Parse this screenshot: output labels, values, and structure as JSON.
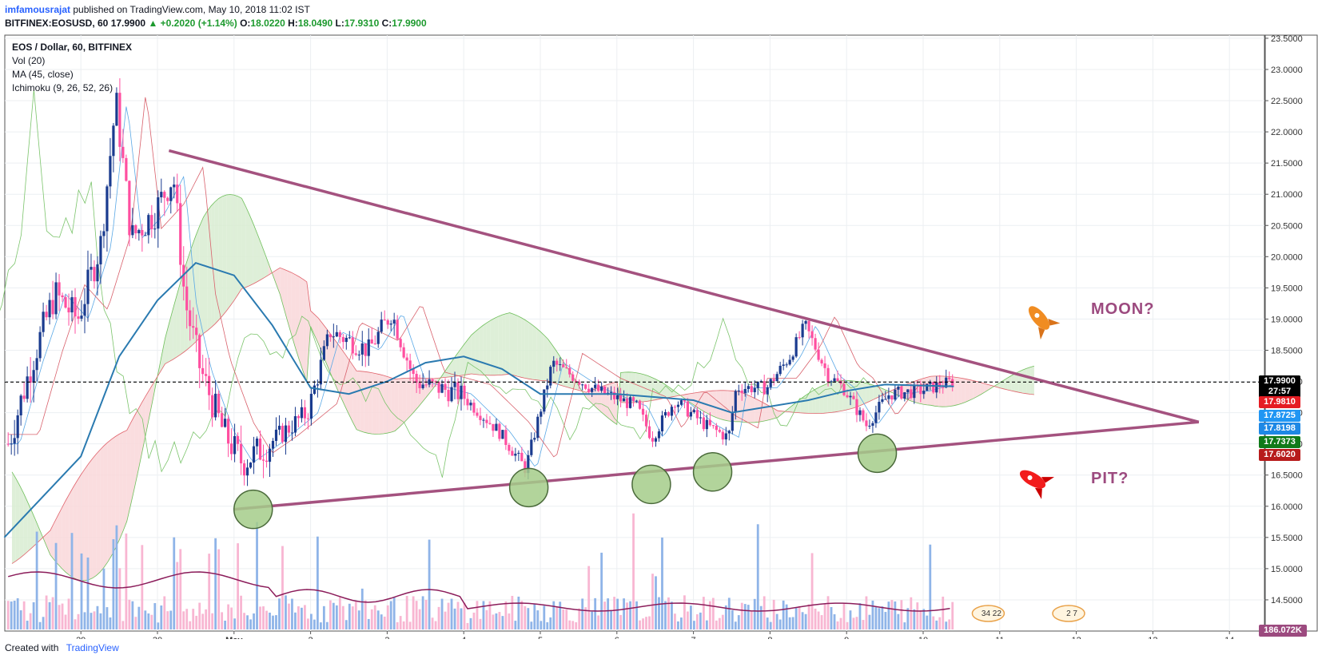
{
  "header": {
    "author": "imfamousrajat",
    "published": "published on TradingView.com, May 10, 2018 11:02 IST",
    "symbol_line": "BITFINEX:EOSUSD, 60",
    "last": "17.9900",
    "change": "▲ +0.2020 (+1.14%)",
    "o_label": "O:",
    "o_value": "18.0220",
    "h_label": "H:",
    "h_value": "18.0490",
    "l_label": "L:",
    "l_value": "17.9310",
    "c_label": "C:",
    "c_value": "17.9900"
  },
  "legend": {
    "title": "EOS / Dollar, 60, BITFINEX",
    "vol": "Vol (20)",
    "ma": "MA (45, close)",
    "ichimoku": "Ichimoku (9, 26, 52, 26)"
  },
  "annotations": {
    "moon": "MOON?",
    "pit": "PIT?",
    "rocket_up_icon": "rocket-up-icon",
    "rocket_down_icon": "rocket-down-icon"
  },
  "price_tags": [
    {
      "label": "17.9900",
      "value": 17.99,
      "color": "#1c8e26"
    },
    {
      "label": "17.9900",
      "value": 17.99,
      "color": "#000000"
    },
    {
      "label": "27:57",
      "value": 17.83,
      "color": "#000000"
    },
    {
      "label": "17.9810",
      "value": 17.66,
      "color": "#e51c23"
    },
    {
      "label": "17.8725",
      "value": 17.45,
      "color": "#2196f3"
    },
    {
      "label": "17.8198",
      "value": 17.24,
      "color": "#1e88e5"
    },
    {
      "label": "17.7373",
      "value": 17.02,
      "color": "#0f7a19"
    },
    {
      "label": "17.6020",
      "value": 16.81,
      "color": "#b71c1c"
    },
    {
      "label": "186.072K",
      "value": 14.0,
      "color": "#9c4a7f"
    }
  ],
  "event_badges": [
    "34",
    "22",
    "2",
    "7"
  ],
  "footer": {
    "created_with": "Created with",
    "brand": "TradingView"
  },
  "colors": {
    "bull": "#1a3b8f",
    "bear": "#ff4fa0",
    "ma": "#2a7ab0",
    "triangle": "#a4527f",
    "cloud_bull": "#d8ecd1",
    "cloud_bear": "#f9d7d9",
    "vol_bull": "#8fb4e8",
    "vol_bear": "#f8b6d2",
    "volma": "#8b1c5a",
    "circle": "#a5cc8a"
  },
  "chart_data": {
    "type": "candlestick",
    "timeframe": "60",
    "x_ticks": [
      "29",
      "30",
      "May",
      "2",
      "3",
      "4",
      "5",
      "6",
      "7",
      "8",
      "9",
      "10",
      "11",
      "12",
      "13",
      "14"
    ],
    "x_tick_days": [
      -1,
      0,
      1,
      2,
      3,
      4,
      5,
      6,
      7,
      8,
      9,
      10,
      11,
      12,
      13,
      14
    ],
    "y_ticks": [
      "14.5000",
      "15.0000",
      "15.5000",
      "16.0000",
      "16.5000",
      "17.0000",
      "17.5000",
      "18.0000",
      "18.5000",
      "19.0000",
      "19.5000",
      "20.0000",
      "20.5000",
      "21.0000",
      "21.5000",
      "22.0000",
      "22.5000",
      "23.0000",
      "23.5000"
    ],
    "ylim": [
      14.0,
      23.55
    ],
    "current_price": 17.99,
    "price_path": [
      {
        "day": -1.9,
        "price": 17.0
      },
      {
        "day": -1.6,
        "price": 18.3
      },
      {
        "day": -1.3,
        "price": 19.4
      },
      {
        "day": -1.0,
        "price": 19.0
      },
      {
        "day": -0.7,
        "price": 20.2
      },
      {
        "day": -0.5,
        "price": 22.5
      },
      {
        "day": -0.3,
        "price": 20.3
      },
      {
        "day": 0.0,
        "price": 20.7
      },
      {
        "day": 0.25,
        "price": 21.3
      },
      {
        "day": 0.4,
        "price": 19.3
      },
      {
        "day": 0.6,
        "price": 18.2
      },
      {
        "day": 0.9,
        "price": 17.2
      },
      {
        "day": 1.15,
        "price": 16.7
      },
      {
        "day": 1.5,
        "price": 17.0
      },
      {
        "day": 2.0,
        "price": 17.5
      },
      {
        "day": 2.3,
        "price": 18.8
      },
      {
        "day": 2.8,
        "price": 18.5
      },
      {
        "day": 3.1,
        "price": 19.1
      },
      {
        "day": 3.4,
        "price": 18.0
      },
      {
        "day": 4.0,
        "price": 17.8
      },
      {
        "day": 4.5,
        "price": 17.2
      },
      {
        "day": 4.85,
        "price": 16.6
      },
      {
        "day": 5.2,
        "price": 18.3
      },
      {
        "day": 5.7,
        "price": 17.9
      },
      {
        "day": 6.3,
        "price": 17.6
      },
      {
        "day": 6.5,
        "price": 17.1
      },
      {
        "day": 6.8,
        "price": 17.7
      },
      {
        "day": 7.2,
        "price": 17.3
      },
      {
        "day": 7.5,
        "price": 17.1
      },
      {
        "day": 7.6,
        "price": 17.9
      },
      {
        "day": 8.0,
        "price": 17.9
      },
      {
        "day": 8.3,
        "price": 18.4
      },
      {
        "day": 8.5,
        "price": 18.9
      },
      {
        "day": 8.8,
        "price": 18.1
      },
      {
        "day": 9.0,
        "price": 17.9
      },
      {
        "day": 9.3,
        "price": 17.3
      },
      {
        "day": 9.6,
        "price": 17.8
      },
      {
        "day": 10.0,
        "price": 17.85
      },
      {
        "day": 10.4,
        "price": 17.99
      }
    ],
    "ma_path": [
      {
        "day": -2.0,
        "price": 15.5
      },
      {
        "day": -1.0,
        "price": 16.8
      },
      {
        "day": -0.5,
        "price": 18.4
      },
      {
        "day": 0.0,
        "price": 19.3
      },
      {
        "day": 0.5,
        "price": 19.9
      },
      {
        "day": 1.0,
        "price": 19.7
      },
      {
        "day": 1.5,
        "price": 18.9
      },
      {
        "day": 2.0,
        "price": 17.9
      },
      {
        "day": 2.5,
        "price": 17.8
      },
      {
        "day": 3.0,
        "price": 18.0
      },
      {
        "day": 3.5,
        "price": 18.3
      },
      {
        "day": 4.0,
        "price": 18.4
      },
      {
        "day": 4.5,
        "price": 18.2
      },
      {
        "day": 5.0,
        "price": 17.8
      },
      {
        "day": 6.0,
        "price": 17.8
      },
      {
        "day": 7.0,
        "price": 17.7
      },
      {
        "day": 7.5,
        "price": 17.5
      },
      {
        "day": 8.0,
        "price": 17.6
      },
      {
        "day": 8.5,
        "price": 17.7
      },
      {
        "day": 9.0,
        "price": 17.85
      },
      {
        "day": 9.5,
        "price": 17.95
      },
      {
        "day": 10.4,
        "price": 17.92
      }
    ],
    "triangle_upper": [
      {
        "day": 0.15,
        "price": 21.7
      },
      {
        "day": 11.7,
        "price": 18.0
      }
    ],
    "triangle_lower": [
      {
        "day": 1.0,
        "price": 15.95
      },
      {
        "day": 13.6,
        "price": 17.35
      }
    ],
    "triangle_apex": {
      "day": 13.6,
      "price": 17.35
    },
    "support_touches": [
      {
        "day": 1.25,
        "price": 15.95
      },
      {
        "day": 4.85,
        "price": 16.3
      },
      {
        "day": 6.45,
        "price": 16.35
      },
      {
        "day": 7.25,
        "price": 16.55
      },
      {
        "day": 9.4,
        "price": 16.85
      }
    ]
  }
}
